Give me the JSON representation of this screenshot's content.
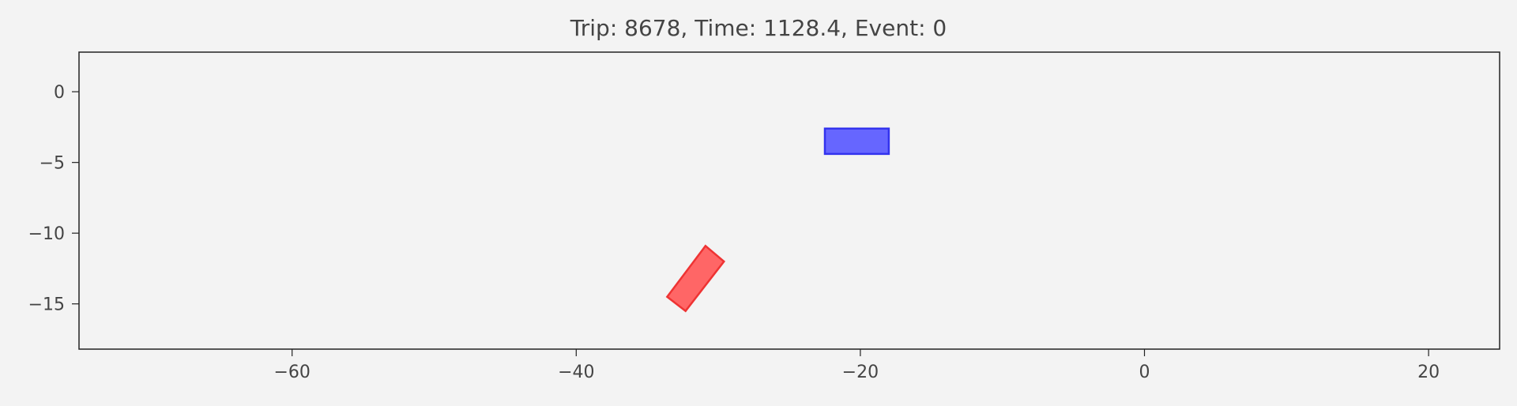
{
  "chart_data": {
    "type": "scatter",
    "title": "Trip: 8678, Time: 1128.4, Event: 0",
    "xlabel": "",
    "ylabel": "",
    "xlim": [
      -75,
      25
    ],
    "ylim": [
      -18.2,
      2.8
    ],
    "xticks": [
      -60,
      -40,
      -20,
      0,
      20
    ],
    "xtick_labels": [
      "−60",
      "−40",
      "−20",
      "0",
      "20"
    ],
    "yticks": [
      0,
      -5,
      -10,
      -15
    ],
    "ytick_labels": [
      "0",
      "−5",
      "−10",
      "−15"
    ],
    "grid": false,
    "objects": [
      {
        "color": "#6666ff",
        "edge_color": "#3333ee",
        "vertices": [
          [
            -22.5,
            -2.6
          ],
          [
            -18.0,
            -2.6
          ],
          [
            -18.0,
            -4.4
          ],
          [
            -22.5,
            -4.4
          ]
        ]
      },
      {
        "color": "#ff6666",
        "edge_color": "#ee3333",
        "vertices": [
          [
            -32.3,
            -15.5
          ],
          [
            -29.6,
            -12.0
          ],
          [
            -30.9,
            -10.9
          ],
          [
            -33.6,
            -14.5
          ]
        ]
      }
    ]
  }
}
